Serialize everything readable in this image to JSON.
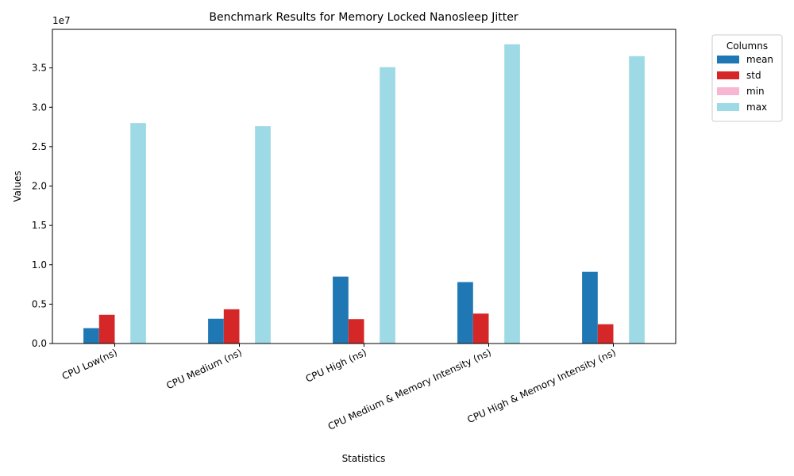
{
  "chart_data": {
    "type": "bar",
    "title": "Benchmark Results for Memory Locked Nanosleep Jitter",
    "xlabel": "Statistics",
    "ylabel": "Values",
    "offset_label": "1e7",
    "categories": [
      "CPU Low(ns)",
      "CPU Medium (ns)",
      "CPU High (ns)",
      "CPU Medium & Memory Intensity (ns)",
      "CPU High & Memory Intensity (ns)"
    ],
    "series": [
      {
        "name": "mean",
        "color": "#1f77b4",
        "values": [
          1.95,
          3.15,
          8.5,
          7.8,
          9.1
        ]
      },
      {
        "name": "std",
        "color": "#d62728",
        "values": [
          3.65,
          4.35,
          3.1,
          3.8,
          2.45
        ]
      },
      {
        "name": "min",
        "color": "#f7b6d2",
        "values": [
          0.0,
          0.0,
          0.0,
          0.0,
          0.0
        ]
      },
      {
        "name": "max",
        "color": "#9edae5",
        "values": [
          28.0,
          27.6,
          35.1,
          38.0,
          36.5
        ]
      }
    ],
    "y_unit_note": "values shown in units of 1e7",
    "ylim": [
      0,
      39.9
    ],
    "yticks": [
      0.0,
      0.5,
      1.0,
      1.5,
      2.0,
      2.5,
      3.0,
      3.5
    ],
    "yticks_data": [
      0,
      5,
      10,
      15,
      20,
      25,
      30,
      35
    ],
    "legend": {
      "title": "Columns",
      "placement": "outside top-right"
    },
    "grid": false
  }
}
